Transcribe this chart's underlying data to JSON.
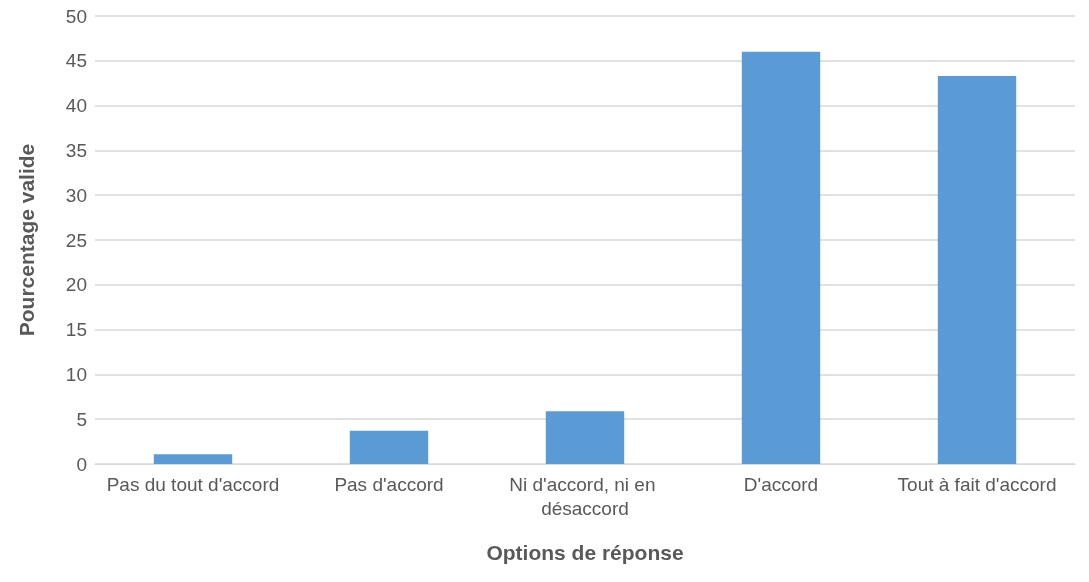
{
  "chart_data": {
    "type": "bar",
    "xlabel": "Options de réponse",
    "ylabel": "Pourcentage valide",
    "categories": [
      "Pas du tout d'accord",
      "Pas d'accord",
      "Ni d'accord, ni en désaccord",
      "D'accord",
      "Tout à fait d'accord"
    ],
    "values": [
      1.1,
      3.7,
      5.9,
      46.0,
      43.3
    ],
    "color": "#5b9bd5",
    "ylim": [
      0,
      50
    ],
    "yticks": [
      0,
      5,
      10,
      15,
      20,
      25,
      30,
      35,
      40,
      45,
      50
    ],
    "grid": "y"
  }
}
